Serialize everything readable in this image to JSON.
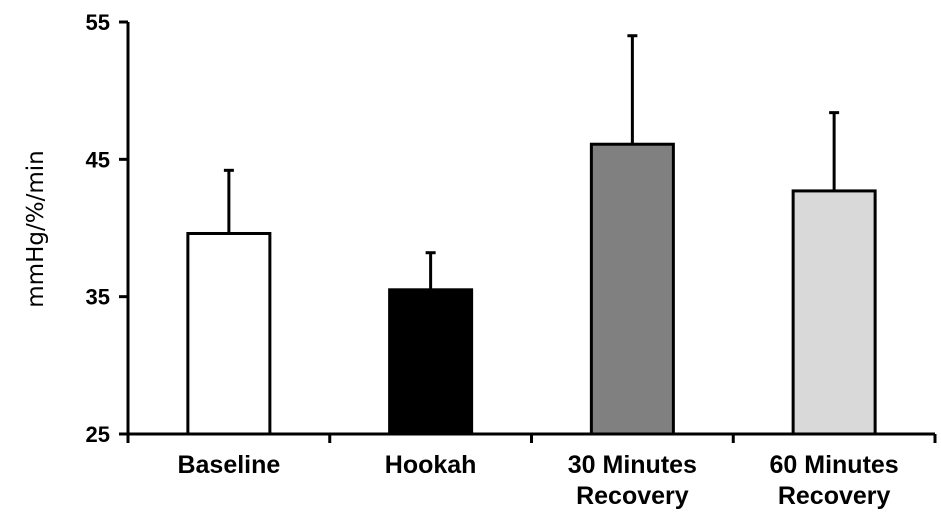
{
  "chart_data": {
    "type": "bar",
    "title": "",
    "xlabel": "",
    "ylabel": "mmHg/%/min",
    "ylim": [
      25,
      55
    ],
    "yticks": [
      "25",
      "35",
      "45",
      "55"
    ],
    "categories": [
      [
        "Baseline"
      ],
      [
        "Hookah"
      ],
      [
        "30 Minutes",
        "Recovery"
      ],
      [
        "60 Minutes",
        "Recovery"
      ]
    ],
    "values": [
      39.6,
      35.5,
      46.1,
      42.7
    ],
    "errors": [
      4.6,
      2.7,
      7.9,
      5.7
    ],
    "bar_colors": [
      "#ffffff",
      "#000000",
      "#808080",
      "#d9d9d9"
    ],
    "grid": false,
    "legend": "none"
  }
}
